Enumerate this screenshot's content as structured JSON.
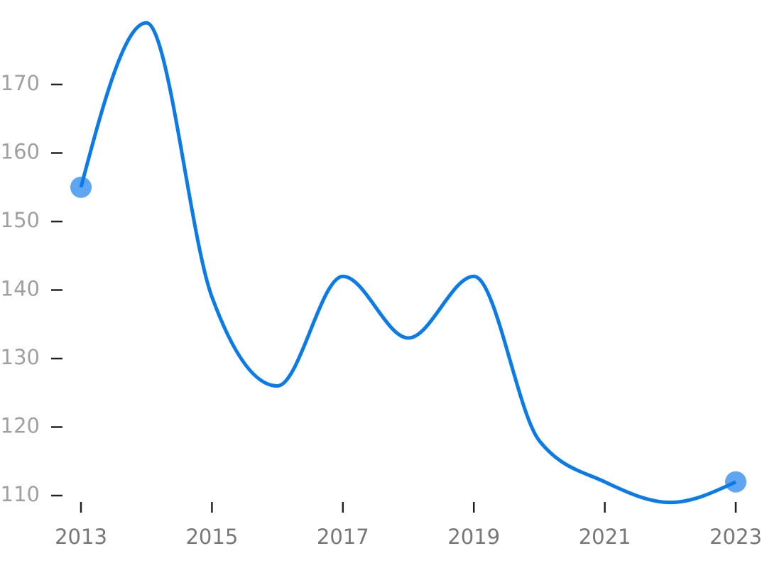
{
  "chart_data": {
    "type": "line",
    "x": [
      2013,
      2014,
      2015,
      2016,
      2017,
      2018,
      2019,
      2020,
      2021,
      2022,
      2023
    ],
    "series": [
      {
        "color": "#0a7be8",
        "values": [
          155,
          179,
          139,
          126,
          142,
          133,
          142,
          118,
          112,
          109,
          112
        ]
      }
    ],
    "markers": "ends",
    "marker_color": "#5ea6f2",
    "xlim": [
      2013,
      2023
    ],
    "xticks": [
      2013,
      2015,
      2017,
      2019,
      2021,
      2023
    ],
    "ylim": [
      109,
      182
    ],
    "yticks": [
      110,
      120,
      130,
      140,
      150,
      160,
      170
    ],
    "grid": false
  }
}
